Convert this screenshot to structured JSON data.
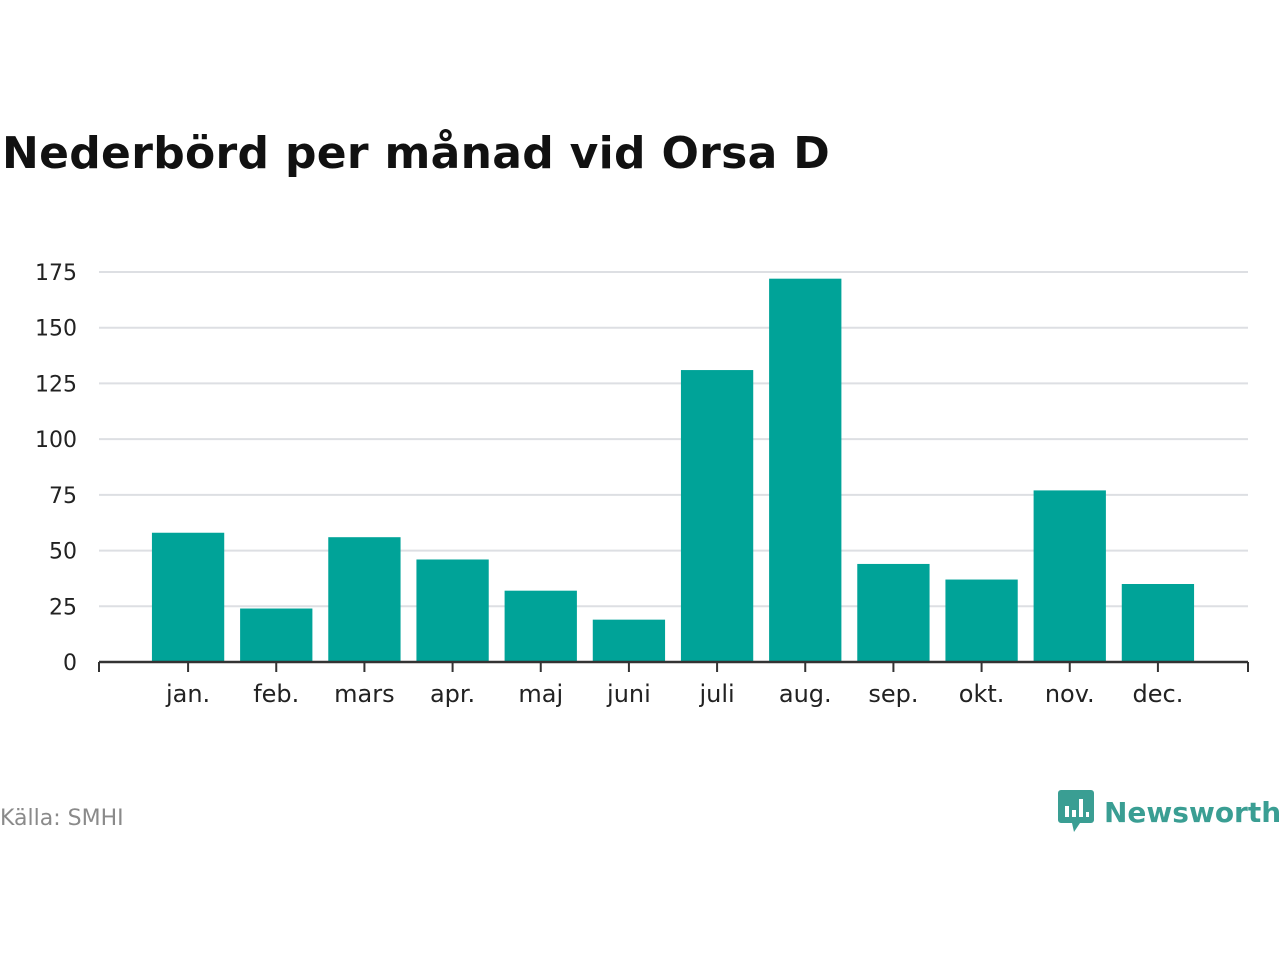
{
  "title": "Nederbörd per månad vid Orsa D",
  "source": "Källa: SMHI",
  "brand": {
    "name": "Newsworthy",
    "color": "#3a9e93",
    "icon": "speech-bubble-bar-chart-icon"
  },
  "colors": {
    "bar": "#00a398",
    "grid": "#dddfe3",
    "axis": "#333333",
    "text": "#222222"
  },
  "chart_data": {
    "type": "bar",
    "categories": [
      "jan.",
      "feb.",
      "mars",
      "apr.",
      "maj",
      "juni",
      "juli",
      "aug.",
      "sep.",
      "okt.",
      "nov.",
      "dec."
    ],
    "values": [
      58,
      24,
      56,
      46,
      32,
      19,
      131,
      172,
      44,
      37,
      77,
      35
    ],
    "yticks": [
      0,
      25,
      50,
      75,
      100,
      125,
      150,
      175
    ],
    "ylim": [
      0,
      175
    ],
    "xlabel": "",
    "ylabel": "",
    "grid": true,
    "legend": false
  }
}
